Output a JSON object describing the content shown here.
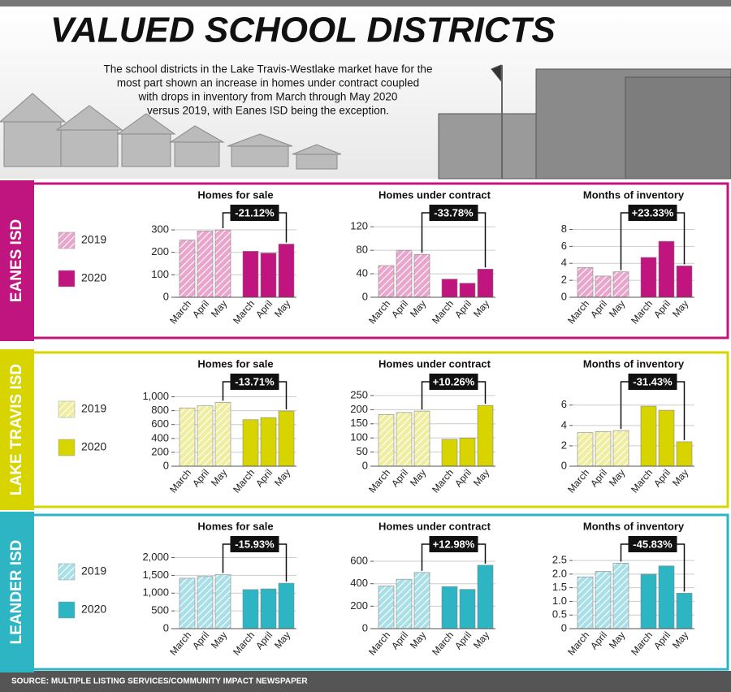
{
  "title": "VALUED SCHOOL DISTRICTS",
  "intro": [
    "The school districts in the Lake Travis-Westlake market have for the",
    "most part shown an increase in homes under contract coupled",
    "with drops in inventory from March through May 2020",
    "versus 2019, with Eanes ISD being the exception."
  ],
  "sections": [
    {
      "name": "EANES ISD"
    },
    {
      "name": "LAKE TRAVIS ISD"
    },
    {
      "name": "LEANDER ISD"
    }
  ],
  "source": "SOURCE: MULTIPLE LISTING SERVICES/COMMUNITY IMPACT NEWSPAPER",
  "chart_data": [
    {
      "type": "bar",
      "title": "Homes for sale",
      "annotation": "-21.12%",
      "categories": [
        "March",
        "April",
        "May"
      ],
      "series": [
        {
          "name": "2019",
          "color": "#e9a5cb",
          "values": [
            255,
            295,
            300
          ]
        },
        {
          "name": "2020",
          "color": "#c0157f",
          "values": [
            205,
            197,
            237
          ]
        }
      ],
      "ylim": [
        0,
        340
      ],
      "yticks": [
        0,
        100,
        200,
        300
      ],
      "grid": true
    },
    {
      "type": "bar",
      "title": "Homes under contract",
      "annotation": "-33.78%",
      "categories": [
        "March",
        "April",
        "May"
      ],
      "series": [
        {
          "name": "2019",
          "color": "#e9a5cb",
          "values": [
            54,
            80,
            73
          ]
        },
        {
          "name": "2020",
          "color": "#c0157f",
          "values": [
            31,
            24,
            48
          ]
        }
      ],
      "ylim": [
        0,
        130
      ],
      "yticks": [
        0,
        40,
        80,
        120
      ],
      "grid": true
    },
    {
      "type": "bar",
      "title": "Months of inventory",
      "annotation": "+23.33%",
      "categories": [
        "March",
        "April",
        "May"
      ],
      "series": [
        {
          "name": "2019",
          "color": "#e9a5cb",
          "values": [
            3.5,
            2.5,
            3.0
          ]
        },
        {
          "name": "2020",
          "color": "#c0157f",
          "values": [
            4.7,
            6.6,
            3.7
          ]
        }
      ],
      "ylim": [
        0,
        9
      ],
      "yticks": [
        0,
        2,
        4,
        6,
        8
      ],
      "grid": true
    },
    {
      "type": "bar",
      "title": "Homes for sale",
      "annotation": "-13.71%",
      "categories": [
        "March",
        "April",
        "May"
      ],
      "series": [
        {
          "name": "2019",
          "color": "#efeea0",
          "values": [
            840,
            870,
            920
          ]
        },
        {
          "name": "2020",
          "color": "#d7d400",
          "values": [
            670,
            700,
            795
          ]
        }
      ],
      "ylim": [
        0,
        1100
      ],
      "yticks": [
        0,
        200,
        400,
        600,
        800,
        {
          "value": 1000,
          "label": "1,000"
        }
      ],
      "grid": true
    },
    {
      "type": "bar",
      "title": "Homes under contract",
      "annotation": "+10.26%",
      "categories": [
        "March",
        "April",
        "May"
      ],
      "series": [
        {
          "name": "2019",
          "color": "#efeea0",
          "values": [
            183,
            190,
            195
          ]
        },
        {
          "name": "2020",
          "color": "#d7d400",
          "values": [
            95,
            100,
            215
          ]
        }
      ],
      "ylim": [
        0,
        270
      ],
      "yticks": [
        0,
        50,
        100,
        150,
        200,
        250
      ],
      "grid": true
    },
    {
      "type": "bar",
      "title": "Months of inventory",
      "annotation": "-31.43%",
      "categories": [
        "March",
        "April",
        "May"
      ],
      "series": [
        {
          "name": "2019",
          "color": "#efeea0",
          "values": [
            3.3,
            3.4,
            3.5
          ]
        },
        {
          "name": "2020",
          "color": "#d7d400",
          "values": [
            5.9,
            5.5,
            2.4
          ]
        }
      ],
      "ylim": [
        0,
        7.5
      ],
      "yticks": [
        0,
        2,
        4,
        6
      ],
      "grid": true
    },
    {
      "type": "bar",
      "title": "Homes for sale",
      "annotation": "-15.93%",
      "categories": [
        "March",
        "April",
        "May"
      ],
      "series": [
        {
          "name": "2019",
          "color": "#a9dfe6",
          "values": [
            1420,
            1470,
            1520
          ]
        },
        {
          "name": "2020",
          "color": "#2db5c4",
          "values": [
            1100,
            1120,
            1280
          ]
        }
      ],
      "ylim": [
        0,
        2150
      ],
      "yticks": [
        0,
        500,
        {
          "value": 1000,
          "label": "1,000"
        },
        {
          "value": 1500,
          "label": "1,500"
        },
        {
          "value": 2000,
          "label": "2,000"
        }
      ],
      "grid": true
    },
    {
      "type": "bar",
      "title": "Homes under contract",
      "annotation": "+12.98%",
      "categories": [
        "March",
        "April",
        "May"
      ],
      "series": [
        {
          "name": "2019",
          "color": "#a9dfe6",
          "values": [
            380,
            440,
            500
          ]
        },
        {
          "name": "2020",
          "color": "#2db5c4",
          "values": [
            375,
            350,
            565
          ]
        }
      ],
      "ylim": [
        0,
        680
      ],
      "yticks": [
        0,
        200,
        400,
        600
      ],
      "grid": true
    },
    {
      "type": "bar",
      "title": "Months of inventory",
      "annotation": "-45.83%",
      "categories": [
        "March",
        "April",
        "May"
      ],
      "series": [
        {
          "name": "2019",
          "color": "#a9dfe6",
          "values": [
            1.9,
            2.1,
            2.4
          ]
        },
        {
          "name": "2020",
          "color": "#2db5c4",
          "values": [
            2.0,
            2.3,
            1.3
          ]
        }
      ],
      "ylim": [
        0,
        2.8
      ],
      "yticks": [
        0,
        0.5,
        {
          "value": 1,
          "label": "1.0"
        },
        1.5,
        {
          "value": 2,
          "label": "2.0"
        },
        2.5
      ],
      "grid": true
    }
  ]
}
